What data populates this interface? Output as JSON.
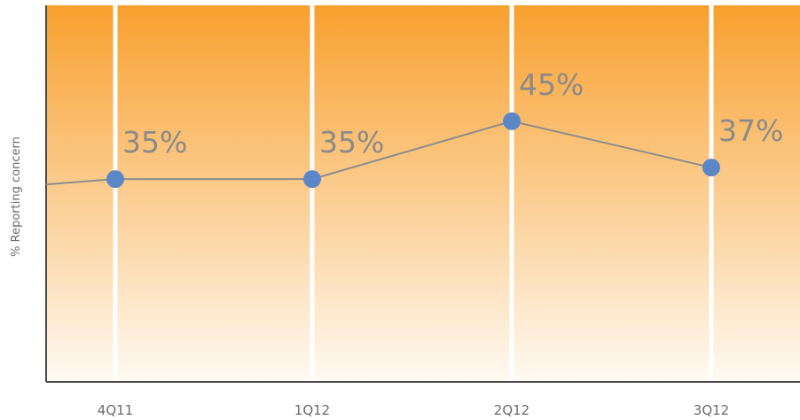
{
  "chart_data": {
    "type": "line",
    "categories": [
      "4Q11",
      "1Q12",
      "2Q12",
      "3Q12"
    ],
    "series": [
      {
        "values": [
          35,
          35,
          45,
          37
        ],
        "labels": [
          "35%",
          "35%",
          "45%",
          "37%"
        ]
      }
    ],
    "ylabel": "% Reporting concern",
    "xlabel": "",
    "title": "",
    "ylim": [
      0,
      65
    ],
    "grid": "vertical bands",
    "legend": "none",
    "colors": {
      "background_top": "#f8a02e",
      "background_bottom": "#fffaf3",
      "line": "#8c8c8c",
      "marker": "#5b87c9",
      "separator": "#ffffff",
      "axis": "#4a4a4a"
    }
  }
}
